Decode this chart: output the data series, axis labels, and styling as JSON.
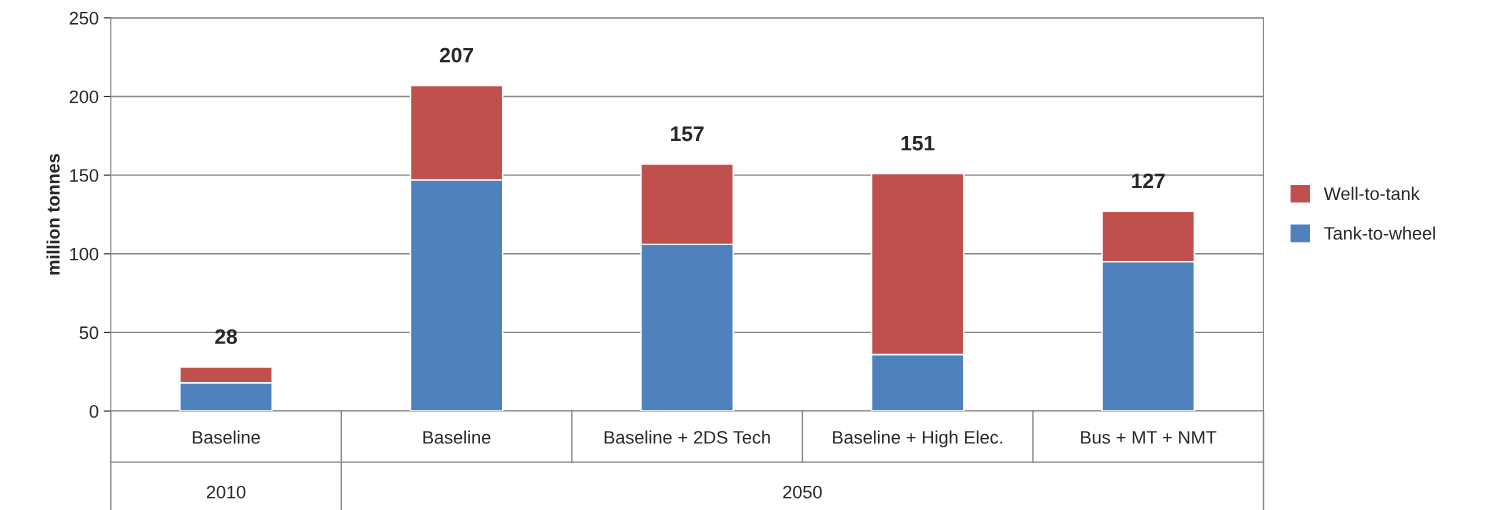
{
  "chart_data": {
    "type": "bar",
    "stacked": true,
    "ylabel": "million tonnes",
    "categories": [
      "Baseline",
      "Baseline",
      "Baseline + 2DS Tech",
      "Baseline + High Elec.",
      "Bus + MT + NMT"
    ],
    "series": [
      {
        "name": "Tank-to-wheel",
        "color": "#4f81bd",
        "values": [
          18,
          147,
          106,
          36,
          95
        ]
      },
      {
        "name": "Well-to-tank",
        "color": "#c0504d",
        "values": [
          10,
          60,
          51,
          115,
          32
        ]
      }
    ],
    "totals": [
      "28",
      "207",
      "157",
      "151",
      "127"
    ],
    "annotations": [
      "2010",
      "2050"
    ],
    "ylim": [
      0,
      250
    ],
    "yticks": [
      0,
      50,
      100,
      150,
      200,
      250
    ],
    "grid": "y",
    "legend": "right"
  }
}
